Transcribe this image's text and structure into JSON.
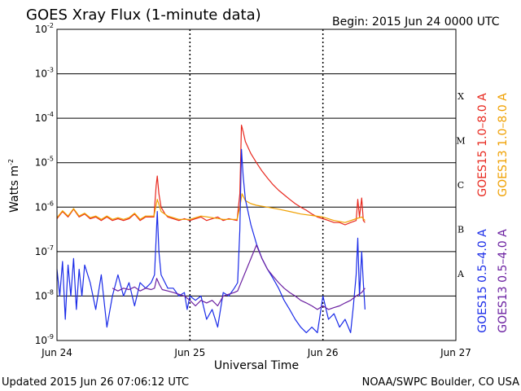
{
  "title": "GOES Xray Flux (1-minute data)",
  "begin_label": "Begin:  2015 Jun 24 0000 UTC",
  "updated_label": "Updated 2015 Jun 26 07:06:12 UTC",
  "credit_label": "NOAA/SWPC Boulder, CO USA",
  "chart_data": {
    "type": "line",
    "title": "GOES Xray Flux (1-minute data)",
    "xlabel": "Universal Time",
    "ylabel": "Watts m",
    "ylabel_sup": "-2",
    "yscale": "log",
    "ylim": [
      1e-09,
      0.01
    ],
    "xlim_hours": [
      0,
      72
    ],
    "x_unit": "hours since 2015 Jun 24 0000 UTC",
    "x_tick_labels": [
      {
        "label": "Jun 24",
        "hour": 0
      },
      {
        "label": "Jun 25",
        "hour": 24
      },
      {
        "label": "Jun 26",
        "hour": 48
      },
      {
        "label": "Jun 27",
        "hour": 72
      }
    ],
    "y_ticks": [
      {
        "base": "10",
        "exp": "-2",
        "value": 0.01
      },
      {
        "base": "10",
        "exp": "-3",
        "value": 0.001
      },
      {
        "base": "10",
        "exp": "-4",
        "value": 0.0001
      },
      {
        "base": "10",
        "exp": "-5",
        "value": 1e-05
      },
      {
        "base": "10",
        "exp": "-6",
        "value": 1e-06
      },
      {
        "base": "10",
        "exp": "-7",
        "value": 1e-07
      },
      {
        "base": "10",
        "exp": "-8",
        "value": 1e-08
      },
      {
        "base": "10",
        "exp": "-9",
        "value": 1e-09
      }
    ],
    "flare_classes": [
      {
        "label": "X",
        "value": 0.0001
      },
      {
        "label": "M",
        "value": 1e-05
      },
      {
        "label": "C",
        "value": 1e-06
      },
      {
        "label": "B",
        "value": 1e-07
      },
      {
        "label": "A",
        "value": 1e-08
      }
    ],
    "gridlines": "horizontal at decades; dotted vertical at day boundaries",
    "legend_position": "right, vertical",
    "series": [
      {
        "name": "GOES15 1.0–8.0 A",
        "color": "#e8281e",
        "points": [
          [
            0,
            5.5e-07
          ],
          [
            1,
            8e-07
          ],
          [
            2,
            6e-07
          ],
          [
            3,
            9e-07
          ],
          [
            4,
            6e-07
          ],
          [
            5,
            7e-07
          ],
          [
            6,
            5.5e-07
          ],
          [
            7,
            6e-07
          ],
          [
            8,
            5e-07
          ],
          [
            9,
            6e-07
          ],
          [
            10,
            5e-07
          ],
          [
            11,
            5.5e-07
          ],
          [
            12,
            5e-07
          ],
          [
            13,
            5.5e-07
          ],
          [
            14,
            7e-07
          ],
          [
            15,
            5e-07
          ],
          [
            16,
            6e-07
          ],
          [
            17.5,
            6e-07
          ],
          [
            17.9,
            3e-06
          ],
          [
            18.1,
            5e-06
          ],
          [
            18.4,
            2e-06
          ],
          [
            18.8,
            1e-06
          ],
          [
            19.5,
            7e-07
          ],
          [
            20,
            6e-07
          ],
          [
            21,
            5.5e-07
          ],
          [
            22,
            5e-07
          ],
          [
            23,
            5.5e-07
          ],
          [
            24,
            5e-07
          ],
          [
            25,
            5.5e-07
          ],
          [
            26,
            6e-07
          ],
          [
            27,
            5e-07
          ],
          [
            28,
            5.5e-07
          ],
          [
            29,
            6e-07
          ],
          [
            30,
            5e-07
          ],
          [
            31,
            5.5e-07
          ],
          [
            32.5,
            5e-07
          ],
          [
            33,
            2e-06
          ],
          [
            33.3,
            7e-05
          ],
          [
            33.6,
            5e-05
          ],
          [
            34,
            3e-05
          ],
          [
            35,
            1.6e-05
          ],
          [
            36,
            1e-05
          ],
          [
            37,
            6.5e-06
          ],
          [
            38,
            4.5e-06
          ],
          [
            39,
            3.2e-06
          ],
          [
            40,
            2.4e-06
          ],
          [
            41,
            1.9e-06
          ],
          [
            42,
            1.5e-06
          ],
          [
            43,
            1.2e-06
          ],
          [
            44,
            1e-06
          ],
          [
            45,
            8.5e-07
          ],
          [
            46,
            7e-07
          ],
          [
            47,
            6e-07
          ],
          [
            48,
            5.5e-07
          ],
          [
            49,
            5e-07
          ],
          [
            50,
            4.5e-07
          ],
          [
            51,
            4.5e-07
          ],
          [
            52,
            4e-07
          ],
          [
            53,
            4.5e-07
          ],
          [
            54,
            5e-07
          ],
          [
            54.3,
            1.5e-06
          ],
          [
            54.6,
            6e-07
          ],
          [
            55,
            1.6e-06
          ],
          [
            55.3,
            5e-07
          ],
          [
            55.6,
            4.5e-07
          ]
        ]
      },
      {
        "name": "GOES13 1.0–8.0 A",
        "color": "#f0a000",
        "points": [
          [
            0,
            5.8e-07
          ],
          [
            1,
            8.3e-07
          ],
          [
            2,
            6.3e-07
          ],
          [
            3,
            9.3e-07
          ],
          [
            4,
            6.3e-07
          ],
          [
            5,
            7.3e-07
          ],
          [
            6,
            5.8e-07
          ],
          [
            7,
            6.3e-07
          ],
          [
            8,
            5.3e-07
          ],
          [
            9,
            6.3e-07
          ],
          [
            10,
            5.3e-07
          ],
          [
            11,
            5.8e-07
          ],
          [
            12,
            5.3e-07
          ],
          [
            13,
            5.8e-07
          ],
          [
            14,
            7.3e-07
          ],
          [
            15,
            5.3e-07
          ],
          [
            16,
            6.3e-07
          ],
          [
            17.5,
            6.3e-07
          ],
          [
            18.1,
            1.5e-06
          ],
          [
            18.8,
            8e-07
          ],
          [
            20,
            6.3e-07
          ],
          [
            22,
            5.3e-07
          ],
          [
            24,
            5.3e-07
          ],
          [
            26,
            6.3e-07
          ],
          [
            28,
            5.8e-07
          ],
          [
            30,
            5.3e-07
          ],
          [
            32.5,
            5.3e-07
          ],
          [
            33,
            1e-06
          ],
          [
            33.4,
            2e-06
          ],
          [
            34,
            1.4e-06
          ],
          [
            35,
            1.2e-06
          ],
          [
            36,
            1.1e-06
          ],
          [
            38,
            1e-06
          ],
          [
            40,
            9e-07
          ],
          [
            42,
            8e-07
          ],
          [
            44,
            7e-07
          ],
          [
            46,
            6.5e-07
          ],
          [
            48,
            6e-07
          ],
          [
            50,
            5e-07
          ],
          [
            52,
            4.5e-07
          ],
          [
            54,
            5.5e-07
          ],
          [
            55,
            6e-07
          ],
          [
            55.6,
            5e-07
          ]
        ]
      },
      {
        "name": "GOES15 0.5–4.0 A",
        "color": "#1a2be8",
        "points": [
          [
            0,
            4e-08
          ],
          [
            0.5,
            1e-08
          ],
          [
            1,
            6e-08
          ],
          [
            1.5,
            3e-09
          ],
          [
            2,
            5e-08
          ],
          [
            2.5,
            1e-08
          ],
          [
            3,
            7e-08
          ],
          [
            3.5,
            5e-09
          ],
          [
            4,
            4e-08
          ],
          [
            4.5,
            1e-08
          ],
          [
            5,
            5e-08
          ],
          [
            6,
            2e-08
          ],
          [
            7,
            5e-09
          ],
          [
            8,
            3e-08
          ],
          [
            9,
            2e-09
          ],
          [
            10,
            1e-08
          ],
          [
            11,
            3e-08
          ],
          [
            12,
            1e-08
          ],
          [
            13,
            2e-08
          ],
          [
            14,
            6e-09
          ],
          [
            15,
            2e-08
          ],
          [
            16,
            1.5e-08
          ],
          [
            17,
            2e-08
          ],
          [
            17.6,
            3e-08
          ],
          [
            17.9,
            2e-07
          ],
          [
            18.1,
            8e-07
          ],
          [
            18.4,
            1e-07
          ],
          [
            18.8,
            3e-08
          ],
          [
            19.5,
            2e-08
          ],
          [
            20,
            1.5e-08
          ],
          [
            21,
            1.5e-08
          ],
          [
            22,
            1e-08
          ],
          [
            23,
            1.2e-08
          ],
          [
            23.5,
            5e-09
          ],
          [
            24,
            1e-08
          ],
          [
            25,
            8e-09
          ],
          [
            26,
            1e-08
          ],
          [
            27,
            3e-09
          ],
          [
            28,
            5e-09
          ],
          [
            29,
            2e-09
          ],
          [
            30,
            1.2e-08
          ],
          [
            31,
            1e-08
          ],
          [
            32,
            1.5e-08
          ],
          [
            32.6,
            2e-08
          ],
          [
            33,
            3e-07
          ],
          [
            33.3,
            2e-05
          ],
          [
            33.6,
            5e-06
          ],
          [
            34,
            1.5e-06
          ],
          [
            35,
            4e-07
          ],
          [
            36,
            1.5e-07
          ],
          [
            37,
            7e-08
          ],
          [
            38,
            4e-08
          ],
          [
            39,
            2.5e-08
          ],
          [
            40,
            1.5e-08
          ],
          [
            41,
            8e-09
          ],
          [
            42,
            5e-09
          ],
          [
            43,
            3e-09
          ],
          [
            44,
            2e-09
          ],
          [
            45,
            1.5e-09
          ],
          [
            46,
            2e-09
          ],
          [
            47,
            1.5e-09
          ],
          [
            48,
            1e-08
          ],
          [
            49,
            3e-09
          ],
          [
            50,
            4e-09
          ],
          [
            51,
            2e-09
          ],
          [
            52,
            3e-09
          ],
          [
            53,
            1.5e-09
          ],
          [
            53.5,
            6e-09
          ],
          [
            54,
            3e-08
          ],
          [
            54.3,
            2e-07
          ],
          [
            54.6,
            1e-08
          ],
          [
            55,
            1e-07
          ],
          [
            55.3,
            2e-08
          ],
          [
            55.6,
            5e-09
          ]
        ]
      },
      {
        "name": "GOES13 0.5–4.0 A",
        "color": "#6a1fa0",
        "points": [
          [
            10,
            1.5e-08
          ],
          [
            11,
            1.3e-08
          ],
          [
            12,
            1.5e-08
          ],
          [
            13,
            1.4e-08
          ],
          [
            14,
            1.6e-08
          ],
          [
            15,
            1.3e-08
          ],
          [
            16,
            1.5e-08
          ],
          [
            17,
            1.4e-08
          ],
          [
            17.6,
            1.5e-08
          ],
          [
            18,
            2.5e-08
          ],
          [
            18.5,
            1.8e-08
          ],
          [
            19,
            1.4e-08
          ],
          [
            20,
            1.3e-08
          ],
          [
            21,
            1.2e-08
          ],
          [
            22,
            1.1e-08
          ],
          [
            23,
            1e-08
          ],
          [
            24,
            8e-09
          ],
          [
            25,
            6e-09
          ],
          [
            26,
            8e-09
          ],
          [
            27,
            7e-09
          ],
          [
            28,
            8e-09
          ],
          [
            29,
            6e-09
          ],
          [
            30,
            1e-08
          ],
          [
            31,
            1.1e-08
          ],
          [
            32,
            1.2e-08
          ],
          [
            32.6,
            1.3e-08
          ],
          [
            36,
            1.4e-07
          ],
          [
            37,
            7e-08
          ],
          [
            38,
            4e-08
          ],
          [
            39,
            2.8e-08
          ],
          [
            40,
            2e-08
          ],
          [
            41,
            1.5e-08
          ],
          [
            42,
            1.2e-08
          ],
          [
            43,
            1e-08
          ],
          [
            44,
            8e-09
          ],
          [
            45,
            7e-09
          ],
          [
            46,
            6e-09
          ],
          [
            47,
            5e-09
          ],
          [
            48,
            6e-09
          ],
          [
            49,
            5e-09
          ],
          [
            50,
            5.5e-09
          ],
          [
            51,
            6e-09
          ],
          [
            52,
            7e-09
          ],
          [
            53,
            8e-09
          ],
          [
            54,
            1e-08
          ],
          [
            55,
            1.2e-08
          ],
          [
            55.6,
            1.5e-08
          ]
        ]
      }
    ]
  }
}
